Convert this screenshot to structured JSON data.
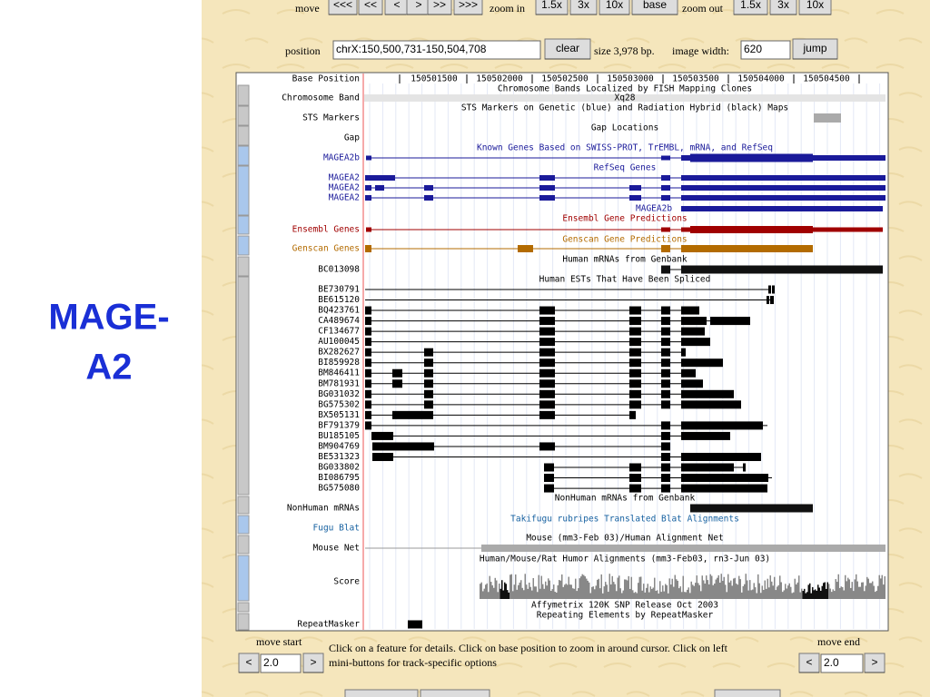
{
  "title": "MAGE-A2",
  "nav": {
    "move_label": "move",
    "move_buttons": [
      "<<<",
      "<<",
      "<",
      ">",
      ">>",
      ">>>"
    ],
    "zoom_in_label": "zoom in",
    "zoom_in_buttons": [
      "1.5x",
      "3x",
      "10x",
      "base"
    ],
    "zoom_out_label": "zoom out",
    "zoom_out_buttons": [
      "1.5x",
      "3x",
      "10x"
    ]
  },
  "position": {
    "label": "position",
    "value": "chrX:150,500,731-150,504,708",
    "clear": "clear",
    "size": "size 3,978 bp.",
    "image_width_label": "image width:",
    "image_width": "620",
    "jump": "jump"
  },
  "browser": {
    "ruler_label": "Base Position",
    "ruler_ticks": [
      "150501500",
      "150502000",
      "150502500",
      "150503000",
      "150503500",
      "150504000",
      "150504500"
    ],
    "band": "Xq28",
    "feature_label": "MAGEA2b",
    "track_titles": [
      "Chromosome Bands Localized by FISH Mapping Clones",
      "STS Markers on Genetic (blue) and Radiation Hybrid (black) Maps",
      "Gap Locations",
      "Known Genes Based on SWISS-PROT, TrEMBL, mRNA, and RefSeq",
      "RefSeq Genes",
      "Ensembl Gene Predictions",
      "Genscan Gene Predictions",
      "Human mRNAs from Genbank",
      "Human ESTs That Have Been Spliced",
      "NonHuman mRNAs from Genbank",
      "Takifugu rubripes Translated Blat Alignments",
      "Mouse (mm3-Feb 03)/Human Alignment Net",
      "Human/Mouse/Rat Humor Alignments (mm3-Feb03, rn3-Jun 03)",
      "Affymetrix 120K SNP Release Oct 2003",
      "Repeating Elements by RepeatMasker"
    ],
    "track_labels": [
      "Chromosome Band",
      "STS Markers",
      "Gap",
      "MAGEA2b",
      "MAGEA2",
      "MAGEA2",
      "MAGEA2",
      "Ensembl Genes",
      "Genscan Genes",
      "BC013098",
      "BE730791",
      "BE615120",
      "BQ423761",
      "CA489674",
      "CF134677",
      "AU100045",
      "BX282627",
      "BI859928",
      "BM846411",
      "BM781931",
      "BG031032",
      "BG575302",
      "BX505131",
      "BF791379",
      "BU185105",
      "BM904769",
      "BE531323",
      "BG033802",
      "BI086795",
      "BG575080",
      "NonHuman mRNAs",
      "Fugu Blat",
      "Mouse Net",
      "Score",
      "RepeatMasker"
    ]
  },
  "footer": {
    "move_start": "move start",
    "move_end": "move end",
    "left": "<",
    "right": ">",
    "start_value": "2.0",
    "end_value": "2.0",
    "help_line1": "Click on a feature for details. Click on base position to zoom in around cursor. Click on left",
    "help_line2": "mini-buttons for track-specific options"
  }
}
